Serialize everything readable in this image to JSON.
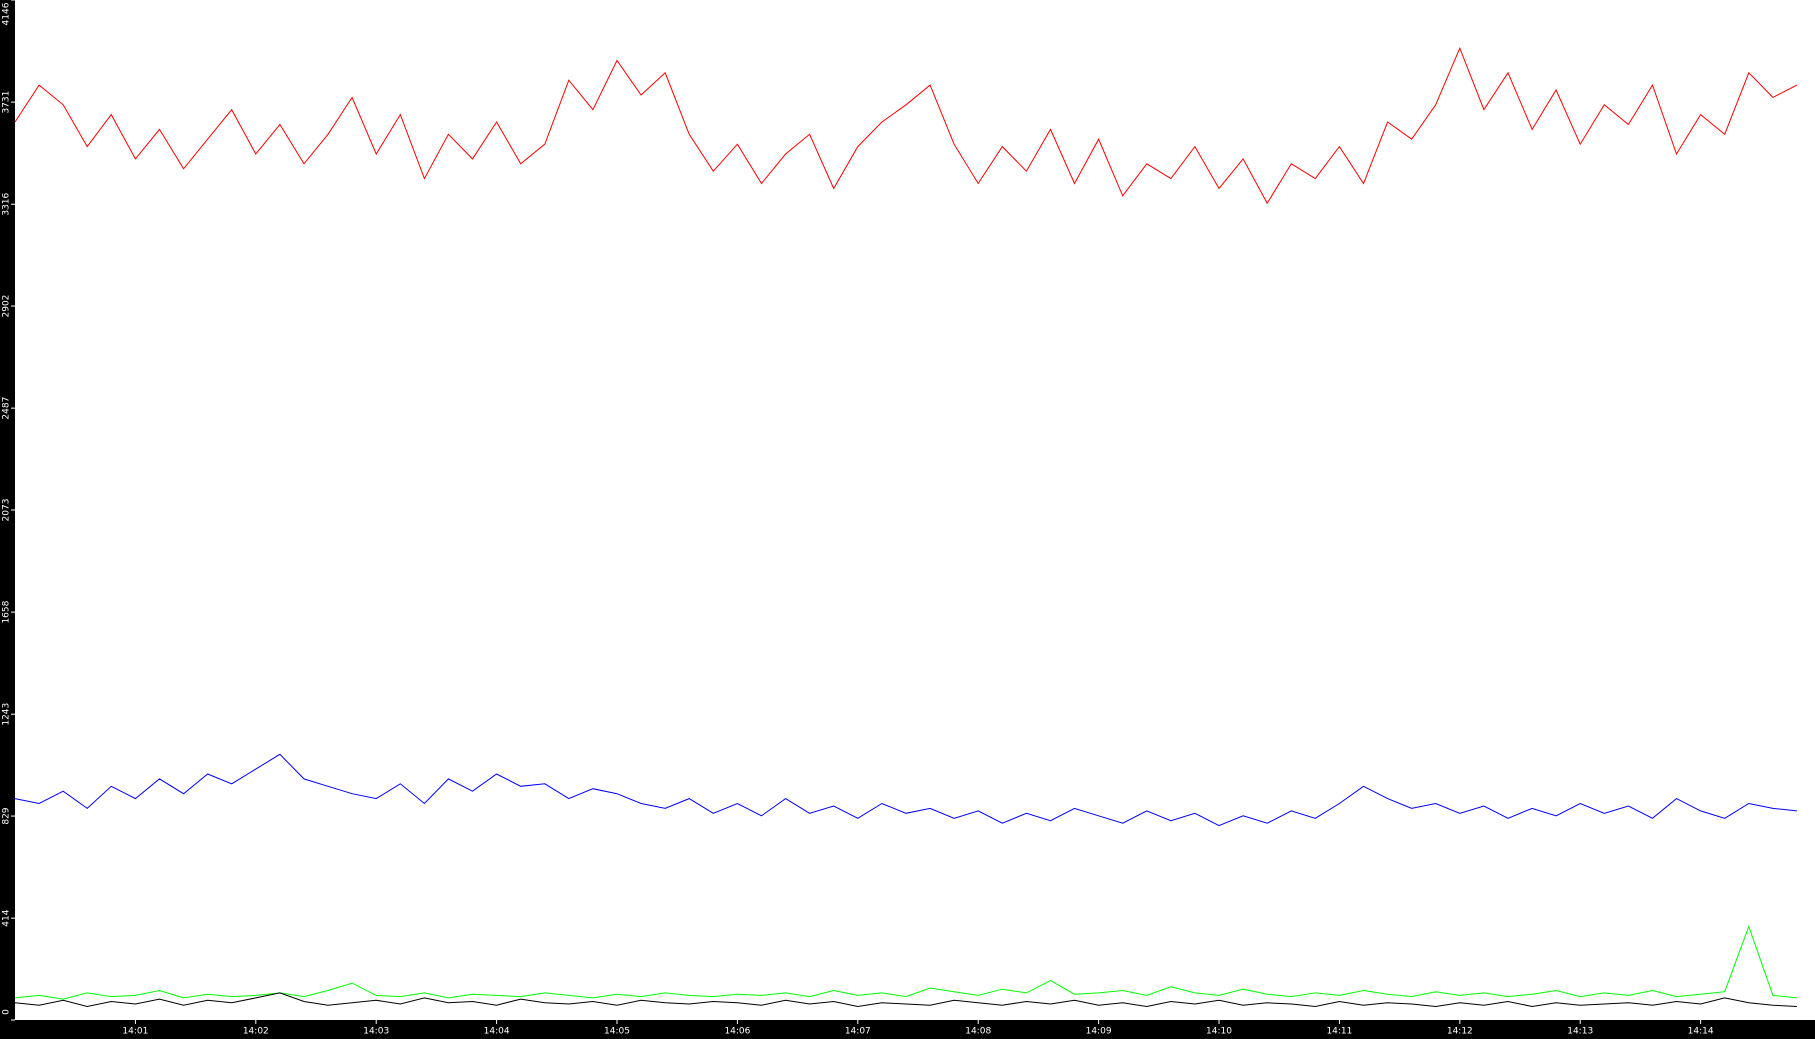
{
  "chart_data": {
    "type": "line",
    "x": [
      0,
      0.2,
      0.4,
      0.6,
      0.8,
      1,
      1.2,
      1.4,
      1.6,
      1.8,
      2,
      2.2,
      2.4,
      2.6,
      2.8,
      3,
      3.2,
      3.4,
      3.6,
      3.8,
      4,
      4.2,
      4.4,
      4.6,
      4.8,
      5,
      5.2,
      5.4,
      5.6,
      5.8,
      6,
      6.2,
      6.4,
      6.6,
      6.8,
      7,
      7.2,
      7.4,
      7.6,
      7.8,
      8,
      8.2,
      8.4,
      8.6,
      8.8,
      9,
      9.2,
      9.4,
      9.6,
      9.8,
      10,
      10.2,
      10.4,
      10.6,
      10.8,
      11,
      11.2,
      11.4,
      11.6,
      11.8,
      12,
      12.2,
      12.4,
      12.6,
      12.8,
      13,
      13.2,
      13.4,
      13.6,
      13.8,
      14,
      14.2,
      14.4,
      14.6,
      14.8
    ],
    "series": [
      {
        "color": "#ff0000",
        "values": [
          3650,
          3800,
          3720,
          3550,
          3680,
          3500,
          3620,
          3460,
          3580,
          3700,
          3520,
          3640,
          3480,
          3600,
          3750,
          3520,
          3680,
          3420,
          3600,
          3500,
          3650,
          3480,
          3560,
          3820,
          3700,
          3900,
          3760,
          3850,
          3600,
          3450,
          3560,
          3400,
          3520,
          3600,
          3380,
          3550,
          3650,
          3720,
          3800,
          3560,
          3400,
          3550,
          3450,
          3620,
          3400,
          3580,
          3350,
          3480,
          3420,
          3550,
          3380,
          3500,
          3320,
          3480,
          3420,
          3550,
          3400,
          3650,
          3580,
          3720,
          3950,
          3700,
          3850,
          3620,
          3780,
          3560,
          3720,
          3640,
          3800,
          3520,
          3680,
          3600,
          3850,
          3750,
          3800
        ]
      },
      {
        "color": "#0000ff",
        "values": [
          900,
          880,
          930,
          860,
          950,
          900,
          980,
          920,
          1000,
          960,
          1020,
          1080,
          980,
          950,
          920,
          900,
          960,
          880,
          980,
          930,
          1000,
          950,
          960,
          900,
          940,
          920,
          880,
          860,
          900,
          840,
          880,
          830,
          900,
          840,
          870,
          820,
          880,
          840,
          860,
          820,
          850,
          800,
          840,
          810,
          860,
          830,
          800,
          850,
          810,
          840,
          790,
          830,
          800,
          850,
          820,
          880,
          950,
          900,
          860,
          880,
          840,
          870,
          820,
          860,
          830,
          880,
          840,
          870,
          820,
          900,
          850,
          820,
          880,
          860,
          850
        ]
      },
      {
        "color": "#00ff00",
        "values": [
          90,
          100,
          85,
          110,
          95,
          100,
          120,
          90,
          105,
          95,
          100,
          110,
          95,
          120,
          150,
          100,
          95,
          110,
          90,
          105,
          100,
          95,
          110,
          100,
          90,
          105,
          95,
          110,
          100,
          95,
          105,
          100,
          110,
          95,
          120,
          100,
          110,
          95,
          130,
          115,
          100,
          125,
          110,
          160,
          105,
          110,
          120,
          100,
          135,
          110,
          100,
          125,
          105,
          95,
          110,
          100,
          120,
          105,
          95,
          115,
          100,
          110,
          95,
          105,
          120,
          95,
          110,
          100,
          120,
          95,
          105,
          115,
          380,
          100,
          90
        ]
      },
      {
        "color": "#000000",
        "values": [
          70,
          60,
          80,
          55,
          75,
          65,
          85,
          60,
          80,
          70,
          90,
          110,
          75,
          60,
          70,
          80,
          65,
          90,
          70,
          75,
          60,
          85,
          70,
          65,
          75,
          60,
          80,
          70,
          65,
          75,
          70,
          60,
          80,
          65,
          75,
          55,
          70,
          65,
          60,
          80,
          70,
          60,
          75,
          65,
          80,
          60,
          70,
          55,
          75,
          65,
          80,
          60,
          70,
          65,
          55,
          75,
          60,
          70,
          65,
          55,
          70,
          60,
          75,
          55,
          70,
          60,
          65,
          70,
          60,
          75,
          65,
          90,
          70,
          60,
          55
        ]
      }
    ],
    "xlim": [
      0,
      14.95
    ],
    "xticks": [
      {
        "value": 1,
        "label": "14:01"
      },
      {
        "value": 2,
        "label": "14:02"
      },
      {
        "value": 3,
        "label": "14:03"
      },
      {
        "value": 4,
        "label": "14:04"
      },
      {
        "value": 5,
        "label": "14:05"
      },
      {
        "value": 6,
        "label": "14:06"
      },
      {
        "value": 7,
        "label": "14:07"
      },
      {
        "value": 8,
        "label": "14:08"
      },
      {
        "value": 9,
        "label": "14:09"
      },
      {
        "value": 10,
        "label": "14:10"
      },
      {
        "value": 11,
        "label": "14:11"
      },
      {
        "value": 12,
        "label": "14:12"
      },
      {
        "value": 13,
        "label": "14:13"
      },
      {
        "value": 14,
        "label": "14:14"
      }
    ],
    "ylim": [
      0,
      4146
    ],
    "yticks": [
      0,
      414,
      829,
      1243,
      1658,
      2073,
      2487,
      2902,
      3316,
      3731,
      4146
    ]
  }
}
